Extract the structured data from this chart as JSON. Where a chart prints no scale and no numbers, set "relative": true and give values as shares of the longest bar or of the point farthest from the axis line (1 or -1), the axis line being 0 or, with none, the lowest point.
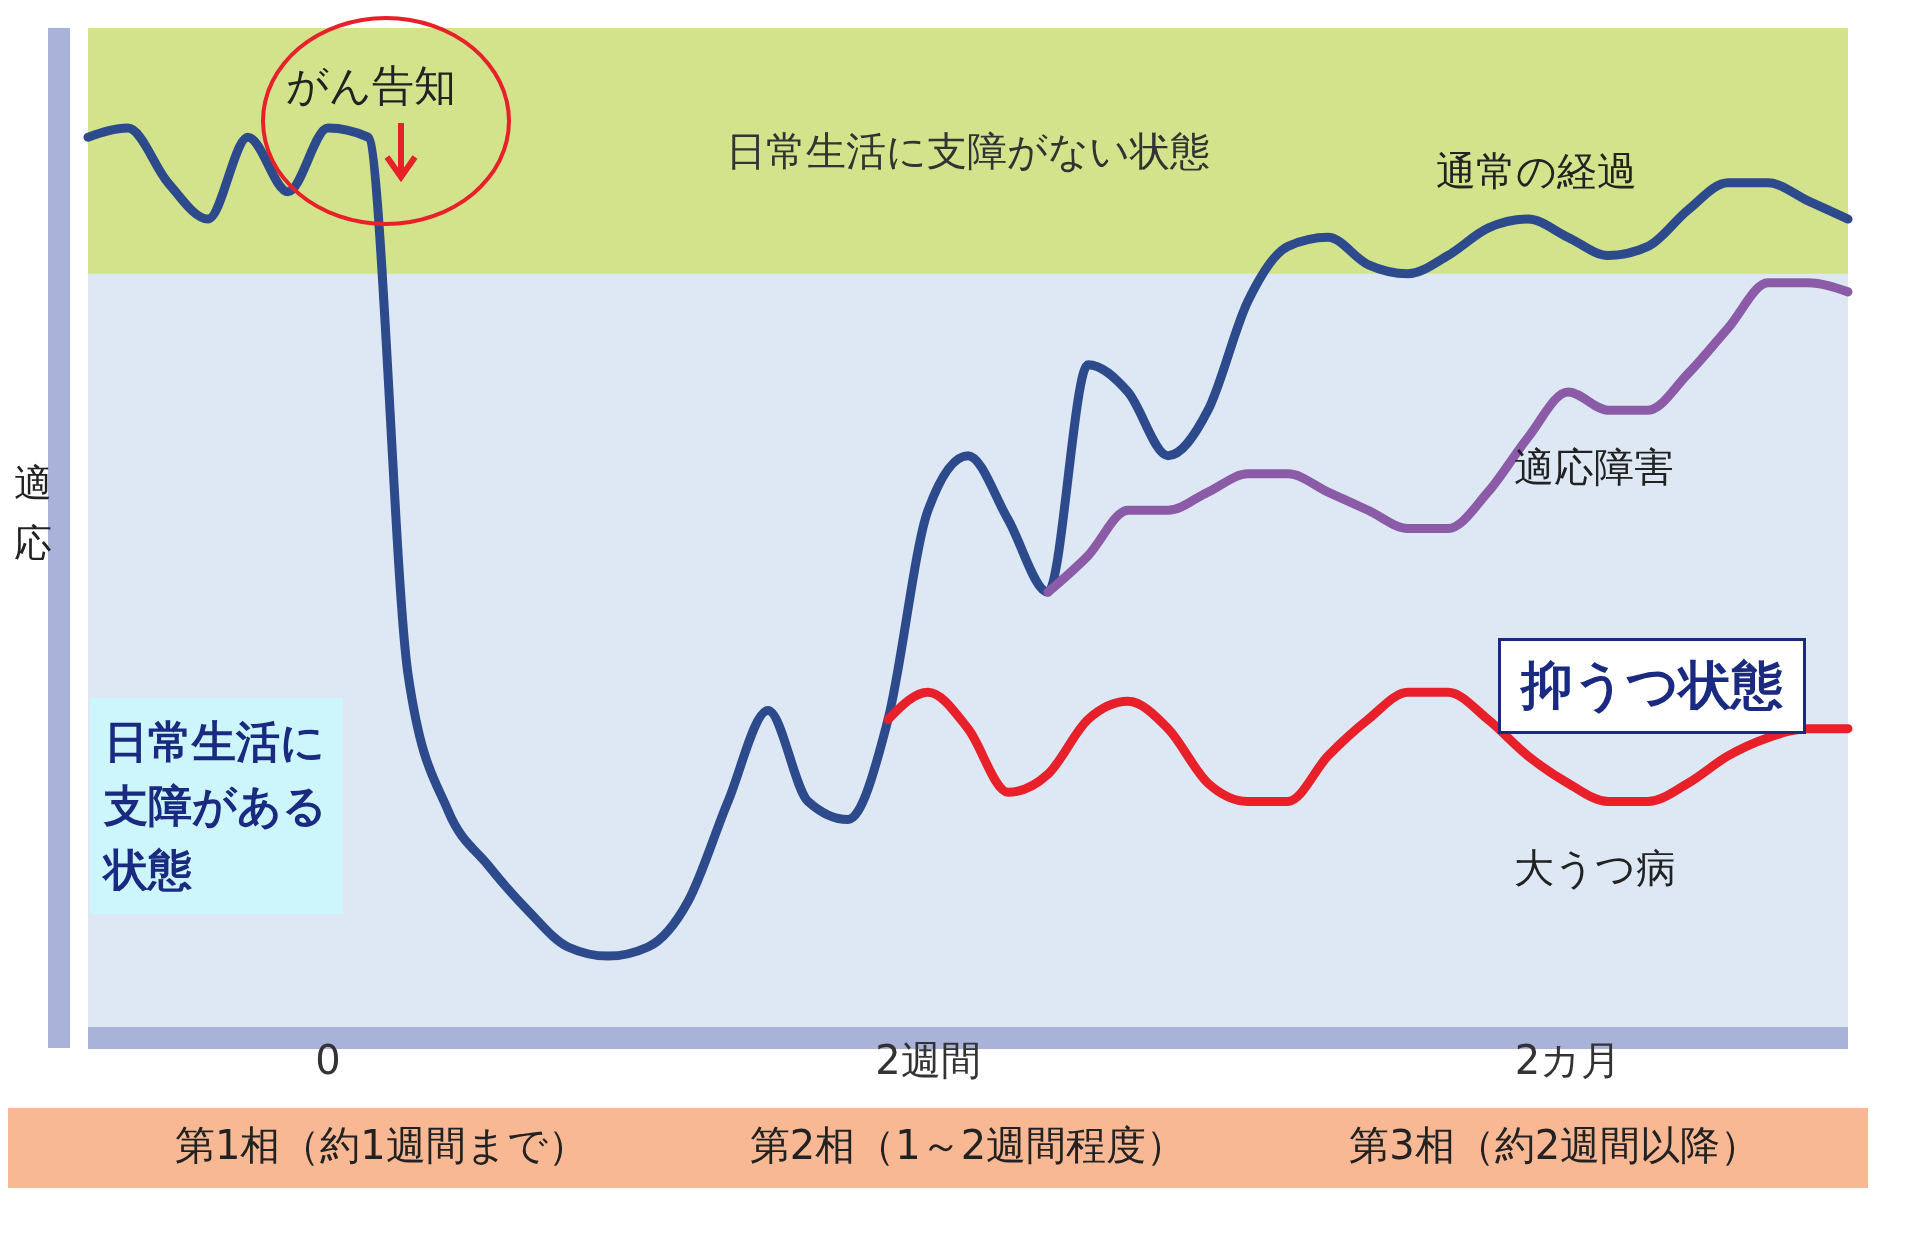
{
  "chart_data": {
    "type": "line",
    "relative": true,
    "ylabel": "適応",
    "categories": [
      null,
      null,
      null,
      null,
      null,
      null,
      "0",
      null,
      null,
      null,
      null,
      null,
      null,
      null,
      null,
      null,
      null,
      null,
      null,
      null,
      null,
      "2週間",
      null,
      null,
      null,
      null,
      null,
      null,
      null,
      null,
      null,
      null,
      null,
      null,
      null,
      null,
      null,
      "2カ月",
      null,
      null,
      null,
      null,
      null,
      null,
      null
    ],
    "series": [
      {
        "name": "通常の経過",
        "color": "#2d4b8c",
        "values": [
          0.99,
          1.0,
          0.94,
          0.9,
          0.99,
          0.93,
          1.0,
          0.99,
          0.4,
          0.25,
          0.19,
          0.14,
          0.1,
          0.09,
          0.1,
          0.15,
          0.26,
          0.36,
          0.26,
          0.24,
          0.35,
          0.58,
          0.64,
          0.57,
          0.49,
          0.74,
          0.71,
          0.64,
          0.69,
          0.81,
          0.87,
          0.88,
          0.85,
          0.84,
          0.86,
          0.89,
          0.9,
          0.88,
          0.86,
          0.87,
          0.91,
          0.94,
          0.94,
          0.92,
          0.9
        ]
      },
      {
        "name": "適応障害",
        "color": "#8b5ba8",
        "values": [
          null,
          null,
          null,
          null,
          null,
          null,
          null,
          null,
          null,
          null,
          null,
          null,
          null,
          null,
          null,
          null,
          null,
          null,
          null,
          null,
          null,
          null,
          null,
          null,
          0.49,
          0.53,
          0.58,
          0.58,
          0.6,
          0.62,
          0.62,
          0.6,
          0.58,
          0.56,
          0.56,
          0.6,
          0.66,
          0.71,
          0.69,
          0.69,
          0.73,
          0.78,
          0.83,
          0.83,
          0.82
        ]
      },
      {
        "name": "大うつ病",
        "color": "#e8202a",
        "values": [
          null,
          null,
          null,
          null,
          null,
          null,
          null,
          null,
          null,
          null,
          null,
          null,
          null,
          null,
          null,
          null,
          null,
          null,
          null,
          null,
          0.35,
          0.38,
          0.34,
          0.27,
          0.29,
          0.35,
          0.37,
          0.34,
          0.28,
          0.26,
          0.26,
          0.31,
          0.35,
          0.38,
          0.38,
          0.35,
          0.31,
          0.28,
          0.26,
          0.26,
          0.28,
          0.31,
          0.33,
          0.34,
          0.34
        ]
      }
    ],
    "bands": [
      {
        "axis": "y",
        "from": 0.84,
        "to": 1.11,
        "label": "日常生活に支障がない状態",
        "color": "#d3e38c"
      }
    ],
    "annotations": [
      "がん告知",
      "日常生活に支障がある状態",
      "抑うつ状態",
      "第1相（約1週間まで）",
      "第2相（1～2週間程度）",
      "第3相（約2週間以降）"
    ]
  }
}
